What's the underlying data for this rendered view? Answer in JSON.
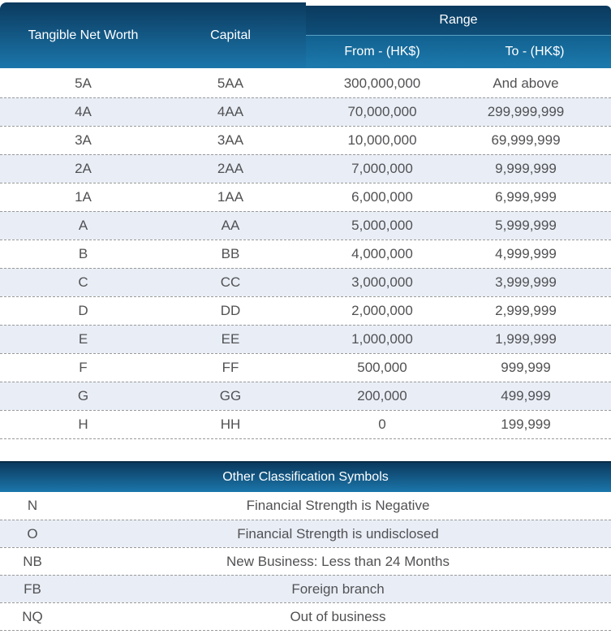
{
  "table1": {
    "header": {
      "col1": "Tangible Net Worth",
      "col2": "Capital",
      "range": "Range",
      "from": "From - (HK$)",
      "to": "To - (HK$)"
    },
    "rows": [
      {
        "tnw": "5A",
        "capital": "5AA",
        "from": "300,000,000",
        "to": "And above"
      },
      {
        "tnw": "4A",
        "capital": "4AA",
        "from": "70,000,000",
        "to": "299,999,999"
      },
      {
        "tnw": "3A",
        "capital": "3AA",
        "from": "10,000,000",
        "to": "69,999,999"
      },
      {
        "tnw": "2A",
        "capital": "2AA",
        "from": "7,000,000",
        "to": "9,999,999"
      },
      {
        "tnw": "1A",
        "capital": "1AA",
        "from": "6,000,000",
        "to": "6,999,999"
      },
      {
        "tnw": "A",
        "capital": "AA",
        "from": "5,000,000",
        "to": "5,999,999"
      },
      {
        "tnw": "B",
        "capital": "BB",
        "from": "4,000,000",
        "to": "4,999,999"
      },
      {
        "tnw": "C",
        "capital": "CC",
        "from": "3,000,000",
        "to": "3,999,999"
      },
      {
        "tnw": "D",
        "capital": "DD",
        "from": "2,000,000",
        "to": "2,999,999"
      },
      {
        "tnw": "E",
        "capital": "EE",
        "from": "1,000,000",
        "to": "1,999,999"
      },
      {
        "tnw": "F",
        "capital": "FF",
        "from": "500,000",
        "to": "999,999"
      },
      {
        "tnw": "G",
        "capital": "GG",
        "from": "200,000",
        "to": "499,999"
      },
      {
        "tnw": "H",
        "capital": "HH",
        "from": "0",
        "to": "199,999"
      }
    ]
  },
  "table2": {
    "header": "Other Classification Symbols",
    "rows": [
      {
        "symbol": "N",
        "description": "Financial Strength is Negative"
      },
      {
        "symbol": "O",
        "description": "Financial Strength is undisclosed"
      },
      {
        "symbol": "NB",
        "description": "New Business: Less than 24 Months"
      },
      {
        "symbol": "FB",
        "description": "Foreign branch"
      },
      {
        "symbol": "NQ",
        "description": "Out of business"
      }
    ]
  },
  "colors": {
    "header_gradient_top": "#0B3A5E",
    "header_gradient_bottom": "#1B76AB",
    "range_gradient_bottom": "#0E4E79",
    "subheader_gradient_top": "#11618F",
    "subheader_gradient_bottom": "#1D7AAE",
    "row_stripe": "#E9EEF6",
    "row_text": "#515154",
    "dashed_border": "#9A9A9A",
    "header_text": "#FFFFFF"
  }
}
